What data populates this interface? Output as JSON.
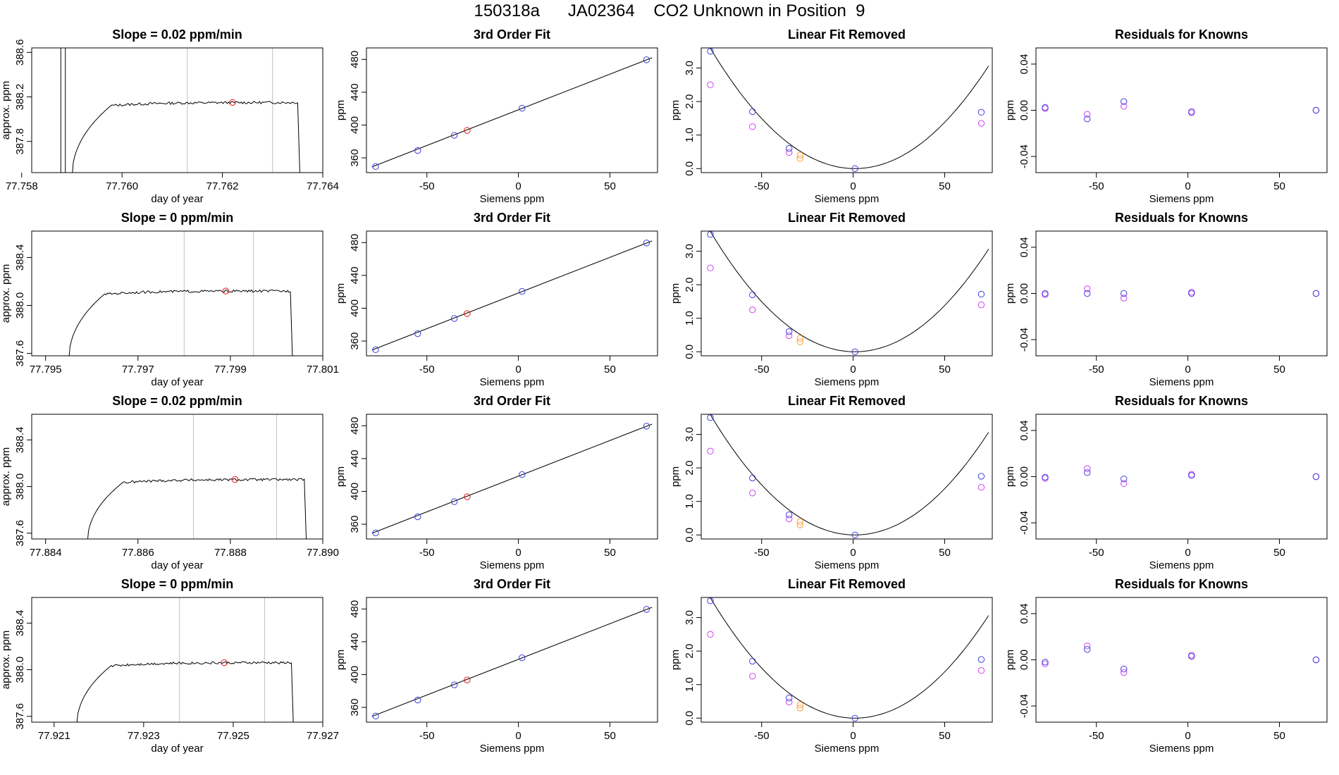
{
  "page_title": "150318a      JA02364    CO2 Unknown in Position  9",
  "colors": {
    "axis": "#000000",
    "trace": "#000000",
    "vline": "#bfbfbf",
    "red": "#e41a1c",
    "blue": "#3f3fe0",
    "violet": "#d040f0",
    "purple": "#8a2be2",
    "orange": "#ff9f30"
  },
  "chart_data": [
    {
      "type": "line",
      "title": "Slope =  0.02  ppm/min",
      "xlabel": "day of year",
      "ylabel": "approx. ppm",
      "xlim": [
        77.7582,
        77.764
      ],
      "ylim": [
        387.52,
        388.64
      ],
      "xticks": [
        "77.758",
        "77.760",
        "77.762",
        "77.764"
      ],
      "xtick_values": [
        77.758,
        77.76,
        77.762,
        77.764
      ],
      "yticks": [
        "387.8",
        "388.2",
        "388.6"
      ],
      "ytick_values": [
        387.8,
        388.2,
        388.6
      ],
      "vlines_gray": [
        77.7613,
        77.763
      ],
      "vlines_black": [
        77.75878,
        77.75887
      ],
      "trace_start": 77.759,
      "trace_end": 77.7635,
      "plateau": 388.15,
      "rise": 0.0008,
      "red_point": {
        "x": 77.7622,
        "y": 388.15
      }
    },
    {
      "type": "scatter",
      "title": "3rd Order Fit",
      "xlabel": "Siemens ppm",
      "ylabel": "ppm",
      "xlim": [
        -83,
        76
      ],
      "ylim": [
        342,
        494
      ],
      "xticks": [
        "-50",
        "0",
        "50"
      ],
      "xtick_values": [
        -50,
        0,
        50
      ],
      "yticks": [
        "360",
        "400",
        "440",
        "480"
      ],
      "ytick_values": [
        360,
        400,
        440,
        480
      ],
      "line": [
        [
          -80,
          349
        ],
        [
          73,
          482
        ]
      ],
      "blue_points": [
        [
          -78,
          349.5
        ],
        [
          -55,
          369
        ],
        [
          -35,
          387.5
        ],
        [
          2,
          420.5
        ],
        [
          70,
          479.5
        ]
      ],
      "red_points": [
        [
          -28,
          393.5
        ]
      ]
    },
    {
      "type": "scatter",
      "title": "Linear Fit Removed",
      "xlabel": "Siemens ppm",
      "ylabel": "ppm",
      "xlim": [
        -83,
        76
      ],
      "ylim": [
        -0.12,
        3.6
      ],
      "xticks": [
        "-50",
        "0",
        "50"
      ],
      "xtick_values": [
        -50,
        0,
        50
      ],
      "yticks": [
        "0.0",
        "1.0",
        "2.0",
        "3.0"
      ],
      "ytick_values": [
        0,
        1,
        2,
        3
      ],
      "curve": {
        "vertex_x": 1,
        "a": 0.000575,
        "x_from": -80,
        "x_to": 74
      },
      "blue_points": [
        [
          -78,
          3.5
        ],
        [
          -55,
          1.7
        ],
        [
          -35,
          0.6
        ],
        [
          1,
          0.0
        ],
        [
          70,
          1.68
        ]
      ],
      "violet_points": [
        [
          -78,
          2.5
        ],
        [
          -55,
          1.25
        ],
        [
          -35,
          0.48
        ],
        [
          70,
          1.35
        ]
      ],
      "orange_points": [
        [
          -29,
          0.4
        ],
        [
          -29,
          0.3
        ]
      ]
    },
    {
      "type": "scatter",
      "title": "Residuals for Knowns",
      "xlabel": "Siemens ppm",
      "ylabel": "ppm",
      "xlim": [
        -83,
        76
      ],
      "ylim": [
        -0.054,
        0.054
      ],
      "xticks": [
        "-50",
        "0",
        "50"
      ],
      "xtick_values": [
        -50,
        0,
        50
      ],
      "yticks": [
        "-0.04",
        "0.00",
        "0.04"
      ],
      "ytick_values": [
        -0.04,
        0,
        0.04
      ],
      "violet_points": [
        [
          -78,
          0.0015
        ],
        [
          -55,
          -0.0035
        ],
        [
          -35,
          0.0035
        ],
        [
          2,
          -0.001
        ],
        [
          70,
          0.0
        ]
      ],
      "blue_points": [
        [
          -78,
          0.0025
        ],
        [
          -55,
          -0.0075
        ],
        [
          -35,
          0.0075
        ],
        [
          2,
          -0.002
        ],
        [
          70,
          0.0
        ]
      ]
    },
    {
      "type": "line",
      "title": "Slope =  0  ppm/min",
      "xlabel": "day of year",
      "ylabel": "approx. ppm",
      "xlim": [
        77.7947,
        77.801
      ],
      "ylim": [
        387.58,
        388.62
      ],
      "xticks": [
        "77.795",
        "77.797",
        "77.799",
        "77.801"
      ],
      "xtick_values": [
        77.795,
        77.797,
        77.799,
        77.801
      ],
      "yticks": [
        "387.6",
        "388.0",
        "388.4"
      ],
      "ytick_values": [
        387.6,
        388.0,
        388.4
      ],
      "vlines_gray": [
        77.798,
        77.7995
      ],
      "vlines_black": [],
      "trace_start": 77.7955,
      "trace_end": 77.8003,
      "plateau": 388.12,
      "rise": 0.0008,
      "red_point": {
        "x": 77.7989,
        "y": 388.12
      }
    },
    {
      "type": "scatter",
      "title": "3rd Order Fit",
      "xlabel": "Siemens ppm",
      "ylabel": "ppm",
      "xlim": [
        -83,
        76
      ],
      "ylim": [
        342,
        494
      ],
      "xticks": [
        "-50",
        "0",
        "50"
      ],
      "xtick_values": [
        -50,
        0,
        50
      ],
      "yticks": [
        "360",
        "400",
        "440",
        "480"
      ],
      "ytick_values": [
        360,
        400,
        440,
        480
      ],
      "line": [
        [
          -80,
          349
        ],
        [
          73,
          482
        ]
      ],
      "blue_points": [
        [
          -78,
          349.5
        ],
        [
          -55,
          369
        ],
        [
          -35,
          387.5
        ],
        [
          2,
          420.5
        ],
        [
          70,
          479.5
        ]
      ],
      "red_points": [
        [
          -28,
          393.5
        ]
      ]
    },
    {
      "type": "scatter",
      "title": "Linear Fit Removed",
      "xlabel": "Siemens ppm",
      "ylabel": "ppm",
      "xlim": [
        -83,
        76
      ],
      "ylim": [
        -0.12,
        3.6
      ],
      "xticks": [
        "-50",
        "0",
        "50"
      ],
      "xtick_values": [
        -50,
        0,
        50
      ],
      "yticks": [
        "0.0",
        "1.0",
        "2.0",
        "3.0"
      ],
      "ytick_values": [
        0,
        1,
        2,
        3
      ],
      "curve": {
        "vertex_x": 1,
        "a": 0.000575,
        "x_from": -80,
        "x_to": 74
      },
      "blue_points": [
        [
          -78,
          3.5
        ],
        [
          -55,
          1.7
        ],
        [
          -35,
          0.6
        ],
        [
          1,
          0.0
        ],
        [
          70,
          1.72
        ]
      ],
      "violet_points": [
        [
          -78,
          2.5
        ],
        [
          -55,
          1.25
        ],
        [
          -35,
          0.48
        ],
        [
          70,
          1.4
        ]
      ],
      "orange_points": [
        [
          -29,
          0.4
        ],
        [
          -29,
          0.3
        ]
      ]
    },
    {
      "type": "scatter",
      "title": "Residuals for Knowns",
      "xlabel": "Siemens ppm",
      "ylabel": "ppm",
      "xlim": [
        -83,
        76
      ],
      "ylim": [
        -0.054,
        0.054
      ],
      "xticks": [
        "-50",
        "0",
        "50"
      ],
      "xtick_values": [
        -50,
        0,
        50
      ],
      "yticks": [
        "-0.04",
        "0.00",
        "0.04"
      ],
      "ytick_values": [
        -0.04,
        0,
        0.04
      ],
      "violet_points": [
        [
          -78,
          -0.001
        ],
        [
          -55,
          0.004
        ],
        [
          -35,
          -0.004
        ],
        [
          2,
          0.001
        ],
        [
          70,
          0.0
        ]
      ],
      "blue_points": [
        [
          -78,
          0.0
        ],
        [
          -55,
          0.0
        ],
        [
          -35,
          0.0
        ],
        [
          2,
          0.0
        ],
        [
          70,
          0.0
        ]
      ]
    },
    {
      "type": "line",
      "title": "Slope =  0.02  ppm/min",
      "xlabel": "day of year",
      "ylabel": "approx. ppm",
      "xlim": [
        77.8837,
        77.89
      ],
      "ylim": [
        387.55,
        388.62
      ],
      "xticks": [
        "77.884",
        "77.886",
        "77.888",
        "77.890"
      ],
      "xtick_values": [
        77.884,
        77.886,
        77.888,
        77.89
      ],
      "yticks": [
        "387.6",
        "388.0",
        "388.4"
      ],
      "ytick_values": [
        387.6,
        388.0,
        388.4
      ],
      "vlines_gray": [
        77.8872,
        77.889
      ],
      "vlines_black": [],
      "trace_start": 77.8849,
      "trace_end": 77.8896,
      "plateau": 388.06,
      "rise": 0.0008,
      "red_point": {
        "x": 77.8881,
        "y": 388.06
      }
    },
    {
      "type": "scatter",
      "title": "3rd Order Fit",
      "xlabel": "Siemens ppm",
      "ylabel": "ppm",
      "xlim": [
        -83,
        76
      ],
      "ylim": [
        342,
        494
      ],
      "xticks": [
        "-50",
        "0",
        "50"
      ],
      "xtick_values": [
        -50,
        0,
        50
      ],
      "yticks": [
        "360",
        "400",
        "440",
        "480"
      ],
      "ytick_values": [
        360,
        400,
        440,
        480
      ],
      "line": [
        [
          -80,
          349
        ],
        [
          73,
          482
        ]
      ],
      "blue_points": [
        [
          -78,
          349.5
        ],
        [
          -55,
          369
        ],
        [
          -35,
          387.5
        ],
        [
          2,
          420.5
        ],
        [
          70,
          479.5
        ]
      ],
      "red_points": [
        [
          -28,
          393.5
        ]
      ]
    },
    {
      "type": "scatter",
      "title": "Linear Fit Removed",
      "xlabel": "Siemens ppm",
      "ylabel": "ppm",
      "xlim": [
        -83,
        76
      ],
      "ylim": [
        -0.12,
        3.6
      ],
      "xticks": [
        "-50",
        "0",
        "50"
      ],
      "xtick_values": [
        -50,
        0,
        50
      ],
      "yticks": [
        "0.0",
        "1.0",
        "2.0",
        "3.0"
      ],
      "ytick_values": [
        0,
        1,
        2,
        3
      ],
      "curve": {
        "vertex_x": 1,
        "a": 0.000575,
        "x_from": -80,
        "x_to": 74
      },
      "blue_points": [
        [
          -78,
          3.5
        ],
        [
          -55,
          1.7
        ],
        [
          -35,
          0.6
        ],
        [
          1,
          0.0
        ],
        [
          70,
          1.75
        ]
      ],
      "violet_points": [
        [
          -78,
          2.5
        ],
        [
          -55,
          1.25
        ],
        [
          -35,
          0.48
        ],
        [
          70,
          1.42
        ]
      ],
      "orange_points": [
        [
          -29,
          0.4
        ],
        [
          -29,
          0.3
        ]
      ]
    },
    {
      "type": "scatter",
      "title": "Residuals for Knowns",
      "xlabel": "Siemens ppm",
      "ylabel": "ppm",
      "xlim": [
        -83,
        76
      ],
      "ylim": [
        -0.054,
        0.054
      ],
      "xticks": [
        "-50",
        "0",
        "50"
      ],
      "xtick_values": [
        -50,
        0,
        50
      ],
      "yticks": [
        "-0.04",
        "0.00",
        "0.04"
      ],
      "ytick_values": [
        -0.04,
        0,
        0.04
      ],
      "violet_points": [
        [
          -78,
          -0.0015
        ],
        [
          -55,
          0.007
        ],
        [
          -35,
          -0.006
        ],
        [
          2,
          0.002
        ],
        [
          70,
          0.0
        ]
      ],
      "blue_points": [
        [
          -78,
          -0.0005
        ],
        [
          -55,
          0.0035
        ],
        [
          -35,
          -0.002
        ],
        [
          2,
          0.001
        ],
        [
          70,
          0.0
        ]
      ]
    },
    {
      "type": "line",
      "title": "Slope =  0  ppm/min",
      "xlabel": "day of year",
      "ylabel": "approx. ppm",
      "xlim": [
        77.9205,
        77.927
      ],
      "ylim": [
        387.55,
        388.62
      ],
      "xticks": [
        "77.921",
        "77.923",
        "77.925",
        "77.927"
      ],
      "xtick_values": [
        77.921,
        77.923,
        77.925,
        77.927
      ],
      "yticks": [
        "387.6",
        "388.0",
        "388.4"
      ],
      "ytick_values": [
        387.6,
        388.0,
        388.4
      ],
      "vlines_gray": [
        77.9238,
        77.9257
      ],
      "vlines_black": [],
      "trace_start": 77.9215,
      "trace_end": 77.9263,
      "plateau": 388.06,
      "rise": 0.0008,
      "red_point": {
        "x": 77.9248,
        "y": 388.06
      }
    },
    {
      "type": "scatter",
      "title": "3rd Order Fit",
      "xlabel": "Siemens ppm",
      "ylabel": "ppm",
      "xlim": [
        -83,
        76
      ],
      "ylim": [
        342,
        494
      ],
      "xticks": [
        "-50",
        "0",
        "50"
      ],
      "xtick_values": [
        -50,
        0,
        50
      ],
      "yticks": [
        "360",
        "400",
        "440",
        "480"
      ],
      "ytick_values": [
        360,
        400,
        440,
        480
      ],
      "line": [
        [
          -80,
          349
        ],
        [
          73,
          482
        ]
      ],
      "blue_points": [
        [
          -78,
          349.5
        ],
        [
          -55,
          369
        ],
        [
          -35,
          387.5
        ],
        [
          2,
          420.5
        ],
        [
          70,
          479.5
        ]
      ],
      "red_points": [
        [
          -28,
          393.5
        ]
      ]
    },
    {
      "type": "scatter",
      "title": "Linear Fit Removed",
      "xlabel": "Siemens ppm",
      "ylabel": "ppm",
      "xlim": [
        -83,
        76
      ],
      "ylim": [
        -0.12,
        3.6
      ],
      "xticks": [
        "-50",
        "0",
        "50"
      ],
      "xtick_values": [
        -50,
        0,
        50
      ],
      "yticks": [
        "0.0",
        "1.0",
        "2.0",
        "3.0"
      ],
      "ytick_values": [
        0,
        1,
        2,
        3
      ],
      "curve": {
        "vertex_x": 1,
        "a": 0.000575,
        "x_from": -80,
        "x_to": 74
      },
      "blue_points": [
        [
          -78,
          3.5
        ],
        [
          -55,
          1.7
        ],
        [
          -35,
          0.6
        ],
        [
          1,
          0.0
        ],
        [
          70,
          1.75
        ]
      ],
      "violet_points": [
        [
          -78,
          2.5
        ],
        [
          -55,
          1.25
        ],
        [
          -35,
          0.48
        ],
        [
          70,
          1.42
        ]
      ],
      "orange_points": [
        [
          -29,
          0.4
        ],
        [
          -29,
          0.3
        ]
      ]
    },
    {
      "type": "scatter",
      "title": "Residuals for Knowns",
      "xlabel": "Siemens ppm",
      "ylabel": "ppm",
      "xlim": [
        -83,
        76
      ],
      "ylim": [
        -0.054,
        0.054
      ],
      "xticks": [
        "-50",
        "0",
        "50"
      ],
      "xtick_values": [
        -50,
        0,
        50
      ],
      "yticks": [
        "-0.04",
        "0.00",
        "0.04"
      ],
      "ytick_values": [
        -0.04,
        0,
        0.04
      ],
      "violet_points": [
        [
          -78,
          -0.0035
        ],
        [
          -55,
          0.012
        ],
        [
          -35,
          -0.011
        ],
        [
          2,
          0.004
        ],
        [
          70,
          0.0
        ]
      ],
      "blue_points": [
        [
          -78,
          -0.002
        ],
        [
          -55,
          0.009
        ],
        [
          -35,
          -0.008
        ],
        [
          2,
          0.003
        ],
        [
          70,
          0.0
        ]
      ]
    }
  ]
}
